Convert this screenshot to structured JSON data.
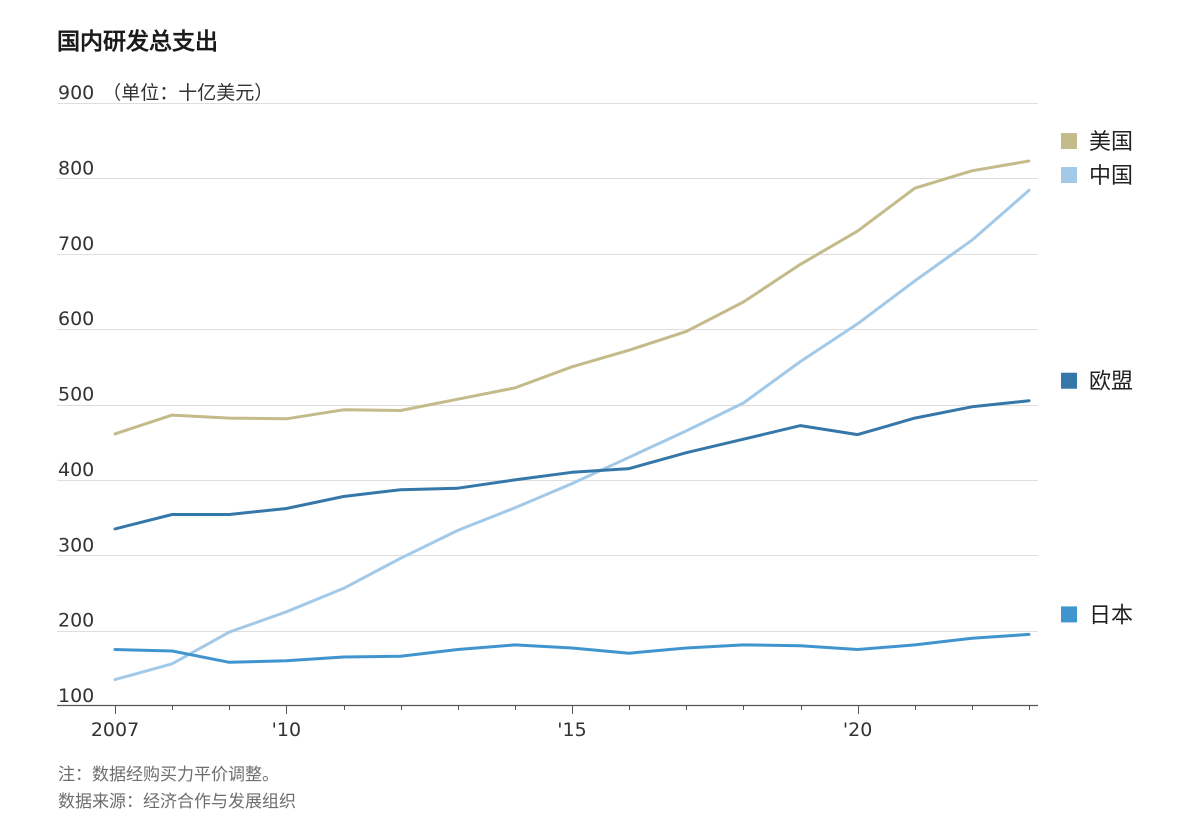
{
  "title": "国内研发总支出",
  "note": "注：数据经购买力平价调整。",
  "source": "数据来源：经济合作与发展组织",
  "chart_data": {
    "type": "line",
    "title": "国内研发总支出",
    "ylabel": "（单位：十亿美元）",
    "xlabel": "",
    "x": [
      2007,
      2008,
      2009,
      2010,
      2011,
      2012,
      2013,
      2014,
      2015,
      2016,
      2017,
      2018,
      2019,
      2020,
      2021,
      2022,
      2023
    ],
    "xlim": [
      2007,
      2023
    ],
    "ylim": [
      100,
      900
    ],
    "x_ticks": [
      {
        "value": 2007,
        "label": "2007"
      },
      {
        "value": 2010,
        "label": "'10"
      },
      {
        "value": 2015,
        "label": "'15"
      },
      {
        "value": 2020,
        "label": "'20"
      }
    ],
    "y_ticks": [
      {
        "value": 900,
        "label": "900"
      },
      {
        "value": 800,
        "label": "800"
      },
      {
        "value": 700,
        "label": "700"
      },
      {
        "value": 600,
        "label": "600"
      },
      {
        "value": 500,
        "label": "500"
      },
      {
        "value": 400,
        "label": "400"
      },
      {
        "value": 300,
        "label": "300"
      },
      {
        "value": 200,
        "label": "200"
      },
      {
        "value": 100,
        "label": "100"
      }
    ],
    "grid": true,
    "legend_placement": "right, labels at line ends",
    "series": [
      {
        "name": "美国",
        "color": "#c3bb8a",
        "values": [
          461,
          486,
          482,
          481,
          493,
          492,
          507,
          522,
          550,
          572,
          597,
          636,
          686,
          730,
          787,
          810,
          823
        ]
      },
      {
        "name": "中国",
        "color": "#a3c9e8",
        "values": [
          135,
          156,
          198,
          225,
          256,
          296,
          333,
          363,
          395,
          430,
          465,
          502,
          557,
          607,
          664,
          718,
          784
        ]
      },
      {
        "name": "欧盟",
        "color": "#3577a8",
        "values": [
          335,
          354,
          354,
          362,
          378,
          387,
          389,
          400,
          410,
          415,
          436,
          454,
          472,
          460,
          482,
          497,
          505
        ]
      },
      {
        "name": "日本",
        "color": "#4195cf",
        "values": [
          175,
          173,
          158,
          160,
          165,
          166,
          175,
          181,
          177,
          170,
          177,
          181,
          180,
          175,
          181,
          190,
          195
        ]
      }
    ]
  }
}
